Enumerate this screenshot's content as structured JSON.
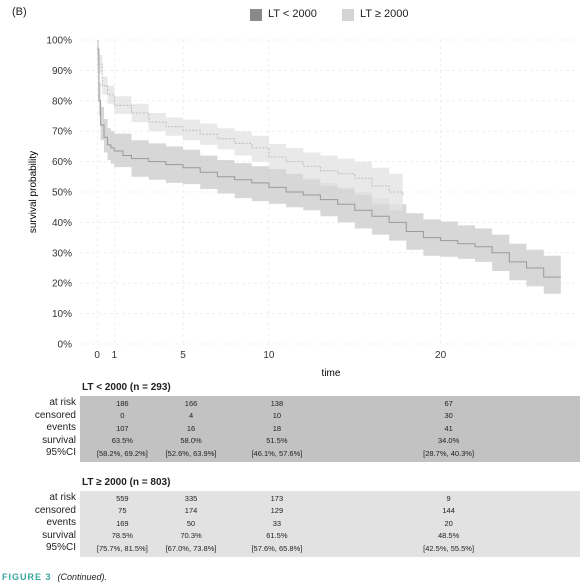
{
  "panel_label": "(B)",
  "legend": [
    {
      "label": "LT < 2000",
      "color": "#8a8a8a"
    },
    {
      "label": "LT ≥ 2000",
      "color": "#d4d4d4"
    }
  ],
  "chart_data": {
    "type": "line",
    "xlabel": "time",
    "ylabel": "survival probability",
    "xlim": [
      -1,
      28
    ],
    "ylim": [
      0,
      1
    ],
    "x_ticks": [
      0,
      1,
      5,
      10,
      20
    ],
    "y_ticks": [
      "0%",
      "10%",
      "20%",
      "30%",
      "40%",
      "50%",
      "60%",
      "70%",
      "80%",
      "90%",
      "100%"
    ],
    "grid": true,
    "series": [
      {
        "name": "LT < 2000",
        "color": "#9a9a9a",
        "band": "#c9c9c9",
        "points": [
          [
            0,
            0.97
          ],
          [
            0.1,
            0.8
          ],
          [
            0.2,
            0.72
          ],
          [
            0.4,
            0.68
          ],
          [
            0.6,
            0.655
          ],
          [
            0.8,
            0.645
          ],
          [
            1,
            0.635
          ],
          [
            1.5,
            0.62
          ],
          [
            2,
            0.61
          ],
          [
            3,
            0.6
          ],
          [
            4,
            0.59
          ],
          [
            5,
            0.58
          ],
          [
            6,
            0.565
          ],
          [
            7,
            0.55
          ],
          [
            8,
            0.54
          ],
          [
            9,
            0.53
          ],
          [
            10,
            0.515
          ],
          [
            11,
            0.5
          ],
          [
            12,
            0.49
          ],
          [
            13,
            0.475
          ],
          [
            14,
            0.46
          ],
          [
            15,
            0.44
          ],
          [
            16,
            0.42
          ],
          [
            17,
            0.4
          ],
          [
            18,
            0.37
          ],
          [
            19,
            0.35
          ],
          [
            20,
            0.34
          ],
          [
            21,
            0.33
          ],
          [
            22,
            0.32
          ],
          [
            23,
            0.3
          ],
          [
            24,
            0.27
          ],
          [
            25,
            0.25
          ],
          [
            26,
            0.22
          ],
          [
            27,
            0.22
          ]
        ],
        "lower": [
          [
            0,
            0.93
          ],
          [
            0.1,
            0.75
          ],
          [
            0.2,
            0.67
          ],
          [
            0.4,
            0.63
          ],
          [
            0.6,
            0.605
          ],
          [
            0.8,
            0.593
          ],
          [
            1,
            0.582
          ],
          [
            2,
            0.55
          ],
          [
            3,
            0.54
          ],
          [
            4,
            0.53
          ],
          [
            5,
            0.526
          ],
          [
            6,
            0.51
          ],
          [
            7,
            0.495
          ],
          [
            8,
            0.48
          ],
          [
            9,
            0.47
          ],
          [
            10,
            0.461
          ],
          [
            11,
            0.45
          ],
          [
            12,
            0.44
          ],
          [
            13,
            0.42
          ],
          [
            14,
            0.4
          ],
          [
            15,
            0.38
          ],
          [
            16,
            0.36
          ],
          [
            17,
            0.34
          ],
          [
            18,
            0.31
          ],
          [
            19,
            0.29
          ],
          [
            20,
            0.287
          ],
          [
            21,
            0.28
          ],
          [
            22,
            0.27
          ],
          [
            23,
            0.24
          ],
          [
            24,
            0.21
          ],
          [
            25,
            0.19
          ],
          [
            26,
            0.165
          ],
          [
            27,
            0.165
          ]
        ],
        "upper": [
          [
            0,
            1.0
          ],
          [
            0.1,
            0.86
          ],
          [
            0.2,
            0.78
          ],
          [
            0.4,
            0.74
          ],
          [
            0.6,
            0.71
          ],
          [
            0.8,
            0.7
          ],
          [
            1,
            0.692
          ],
          [
            2,
            0.67
          ],
          [
            3,
            0.66
          ],
          [
            4,
            0.65
          ],
          [
            5,
            0.639
          ],
          [
            6,
            0.62
          ],
          [
            7,
            0.605
          ],
          [
            8,
            0.595
          ],
          [
            9,
            0.585
          ],
          [
            10,
            0.576
          ],
          [
            11,
            0.56
          ],
          [
            12,
            0.545
          ],
          [
            13,
            0.53
          ],
          [
            14,
            0.515
          ],
          [
            15,
            0.5
          ],
          [
            16,
            0.48
          ],
          [
            17,
            0.46
          ],
          [
            18,
            0.43
          ],
          [
            19,
            0.41
          ],
          [
            20,
            0.403
          ],
          [
            21,
            0.39
          ],
          [
            22,
            0.38
          ],
          [
            23,
            0.36
          ],
          [
            24,
            0.33
          ],
          [
            25,
            0.31
          ],
          [
            26,
            0.29
          ],
          [
            27,
            0.29
          ]
        ]
      },
      {
        "name": "LT ≥ 2000",
        "color": "#bdbdbd",
        "band": "#e3e3e3",
        "points": [
          [
            0,
            0.92
          ],
          [
            0.3,
            0.85
          ],
          [
            0.6,
            0.82
          ],
          [
            1,
            0.785
          ],
          [
            2,
            0.76
          ],
          [
            3,
            0.73
          ],
          [
            4,
            0.715
          ],
          [
            5,
            0.703
          ],
          [
            6,
            0.69
          ],
          [
            7,
            0.675
          ],
          [
            8,
            0.66
          ],
          [
            9,
            0.645
          ],
          [
            10,
            0.615
          ],
          [
            11,
            0.6
          ],
          [
            12,
            0.585
          ],
          [
            13,
            0.57
          ],
          [
            14,
            0.56
          ],
          [
            15,
            0.545
          ],
          [
            16,
            0.52
          ],
          [
            17,
            0.5
          ],
          [
            17.8,
            0.485
          ]
        ],
        "lower": [
          [
            0,
            0.89
          ],
          [
            0.3,
            0.82
          ],
          [
            0.6,
            0.79
          ],
          [
            1,
            0.757
          ],
          [
            2,
            0.73
          ],
          [
            3,
            0.7
          ],
          [
            4,
            0.685
          ],
          [
            5,
            0.67
          ],
          [
            6,
            0.655
          ],
          [
            7,
            0.64
          ],
          [
            8,
            0.62
          ],
          [
            9,
            0.6
          ],
          [
            10,
            0.576
          ],
          [
            11,
            0.56
          ],
          [
            12,
            0.54
          ],
          [
            13,
            0.52
          ],
          [
            14,
            0.51
          ],
          [
            15,
            0.49
          ],
          [
            16,
            0.46
          ],
          [
            17,
            0.44
          ],
          [
            17.8,
            0.425
          ]
        ],
        "upper": [
          [
            0,
            0.95
          ],
          [
            0.3,
            0.88
          ],
          [
            0.6,
            0.85
          ],
          [
            1,
            0.815
          ],
          [
            2,
            0.79
          ],
          [
            3,
            0.76
          ],
          [
            4,
            0.745
          ],
          [
            5,
            0.738
          ],
          [
            6,
            0.725
          ],
          [
            7,
            0.71
          ],
          [
            8,
            0.7
          ],
          [
            9,
            0.685
          ],
          [
            10,
            0.658
          ],
          [
            11,
            0.645
          ],
          [
            12,
            0.63
          ],
          [
            13,
            0.62
          ],
          [
            14,
            0.61
          ],
          [
            15,
            0.6
          ],
          [
            16,
            0.58
          ],
          [
            17,
            0.56
          ],
          [
            17.8,
            0.555
          ]
        ]
      }
    ]
  },
  "table_row_labels": [
    "at risk",
    "censored",
    "events",
    "survival",
    "95%CI"
  ],
  "table_lt": {
    "title": "LT < 2000 (n = 293)",
    "band_color": "#c2c2c2",
    "columns": [
      {
        "time": 1,
        "values": [
          "186",
          "0",
          "107",
          "63.5%",
          "[58.2%, 69.2%]"
        ]
      },
      {
        "time": 5,
        "values": [
          "166",
          "4",
          "16",
          "58.0%",
          "[52.6%, 63.9%]"
        ]
      },
      {
        "time": 10,
        "values": [
          "138",
          "10",
          "18",
          "51.5%",
          "[46.1%, 57.6%]"
        ]
      },
      {
        "time": 20,
        "values": [
          "67",
          "30",
          "41",
          "34.0%",
          "[28.7%, 40.3%]"
        ]
      }
    ]
  },
  "table_ge": {
    "title": "LT ≥ 2000 (n = 803)",
    "band_color": "#e2e2e2",
    "columns": [
      {
        "time": 1,
        "values": [
          "559",
          "75",
          "169",
          "78.5%",
          "[75.7%, 81.5%]"
        ]
      },
      {
        "time": 5,
        "values": [
          "335",
          "174",
          "50",
          "70.3%",
          "[67.0%, 73.8%]"
        ]
      },
      {
        "time": 10,
        "values": [
          "173",
          "129",
          "33",
          "61.5%",
          "[57.6%, 65.8%]"
        ]
      },
      {
        "time": 20,
        "values": [
          "9",
          "144",
          "20",
          "48.5%",
          "[42.5%, 55.5%]"
        ]
      }
    ]
  },
  "caption": {
    "figure": "FIGURE 3",
    "note": "(Continued)."
  }
}
